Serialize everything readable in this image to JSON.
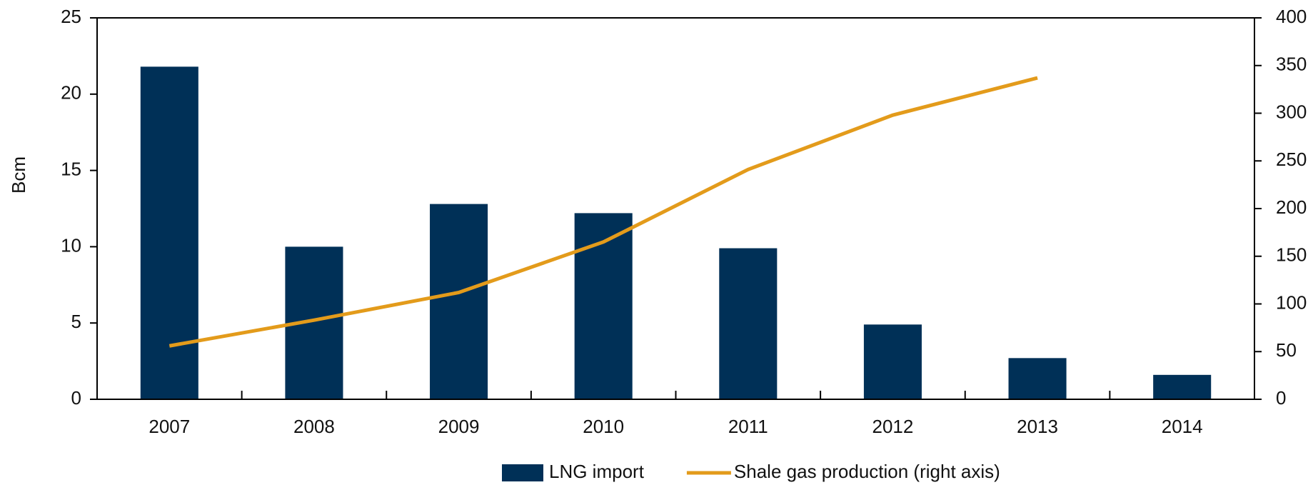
{
  "chart_data": {
    "type": "bar_line",
    "y_label": "Bcm",
    "categories": [
      "2007",
      "2008",
      "2009",
      "2010",
      "2011",
      "2012",
      "2013",
      "2014"
    ],
    "series": [
      {
        "name": "LNG import",
        "type": "bar",
        "color": "#003057",
        "values": [
          21.8,
          10.0,
          12.8,
          12.2,
          9.9,
          4.9,
          2.7,
          1.6
        ]
      },
      {
        "name": "Shale gas production (right axis)",
        "type": "line",
        "axis": "y2",
        "color": "#e39b1b",
        "values": [
          56,
          83,
          112,
          165,
          241,
          298,
          337,
          null
        ]
      }
    ],
    "ylim": [
      0,
      25
    ],
    "yticks": [
      0,
      5,
      10,
      15,
      20,
      25
    ],
    "y2lim": [
      0,
      400
    ],
    "y2ticks": [
      0,
      50,
      100,
      150,
      200,
      250,
      300,
      350,
      400
    ],
    "legend": "bottom"
  }
}
